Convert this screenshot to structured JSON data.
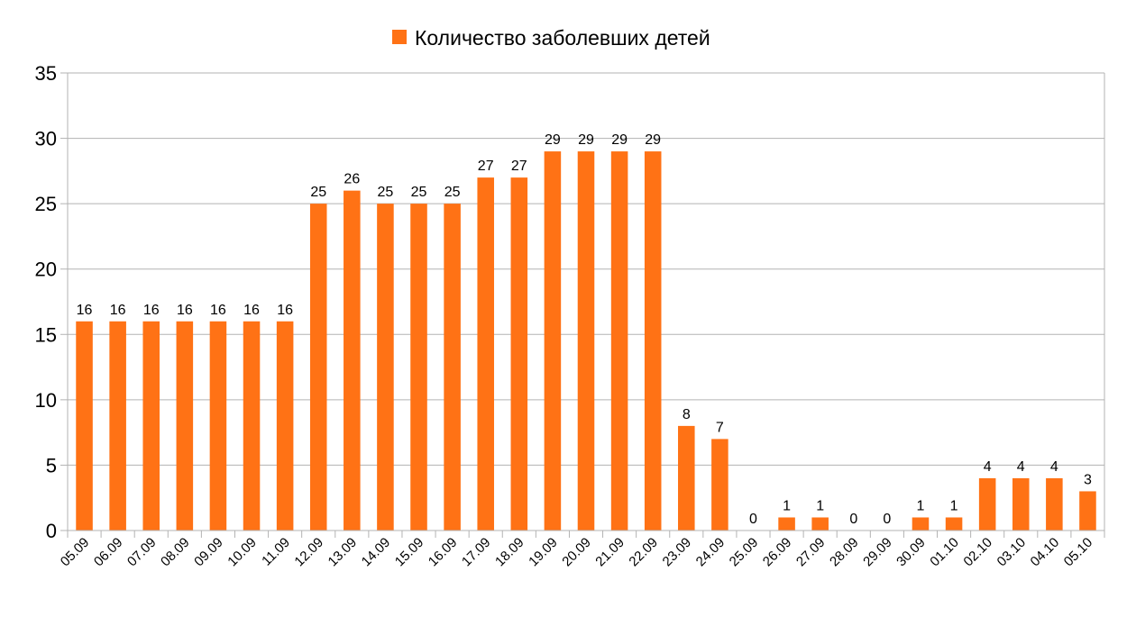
{
  "chart_data": {
    "type": "bar",
    "title": "",
    "xlabel": "",
    "ylabel": "",
    "ylim": [
      0,
      35
    ],
    "yticks": [
      0,
      5,
      10,
      15,
      20,
      25,
      30,
      35
    ],
    "grid": true,
    "legend_position": "top-center",
    "categories": [
      "05.09",
      "06.09",
      "07.09",
      "08.09",
      "09.09",
      "10.09",
      "11.09",
      "12.09",
      "13.09",
      "14.09",
      "15.09",
      "16.09",
      "17.09",
      "18.09",
      "19.09",
      "20.09",
      "21.09",
      "22.09",
      "23.09",
      "24.09",
      "25.09",
      "26.09",
      "27.09",
      "28.09",
      "29.09",
      "30.09",
      "01.10",
      "02.10",
      "03.10",
      "04.10",
      "05.10"
    ],
    "series": [
      {
        "name": "Количество заболевших детей",
        "color": "#ff7215",
        "values": [
          16,
          16,
          16,
          16,
          16,
          16,
          16,
          25,
          26,
          25,
          25,
          25,
          27,
          27,
          29,
          29,
          29,
          29,
          8,
          7,
          0,
          1,
          1,
          0,
          0,
          1,
          1,
          4,
          4,
          4,
          3
        ]
      }
    ]
  }
}
